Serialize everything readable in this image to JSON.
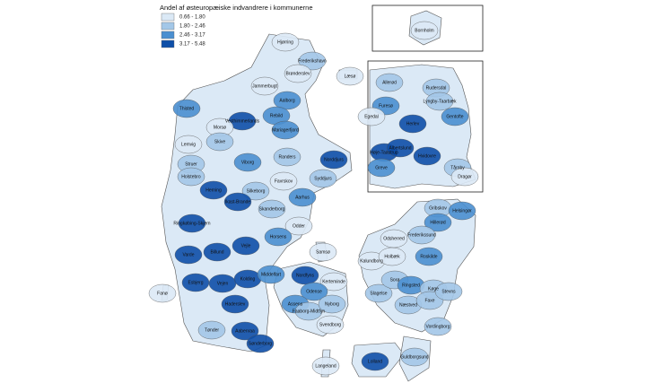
{
  "title": "Andel af østeuropæiske indvandrere i kommunerne",
  "legend": [
    {
      "label": "0.66 - 1.80",
      "color": "#dbe9f6"
    },
    {
      "label": "1.80 - 2.46",
      "color": "#a3c7e8"
    },
    {
      "label": "2.46 - 3.17",
      "color": "#4a8fd0"
    },
    {
      "label": "3.17 - 5.48",
      "color": "#0e4fa8"
    }
  ],
  "municipalities": [
    {
      "name": "Hjørring",
      "color": "#dbe9f6"
    },
    {
      "name": "Frederikshavn",
      "color": "#a3c7e8"
    },
    {
      "name": "Brønderslev",
      "color": "#dbe9f6"
    },
    {
      "name": "Læsø",
      "color": "#dbe9f6"
    },
    {
      "name": "Jammerbugt",
      "color": "#dbe9f6"
    },
    {
      "name": "Aalborg",
      "color": "#4a8fd0"
    },
    {
      "name": "Thisted",
      "color": "#4a8fd0"
    },
    {
      "name": "Vesthimmerlands",
      "color": "#0e4fa8"
    },
    {
      "name": "Rebild",
      "color": "#4a8fd0"
    },
    {
      "name": "Mariagerfjord",
      "color": "#4a8fd0"
    },
    {
      "name": "Morsø",
      "color": "#dbe9f6"
    },
    {
      "name": "Skive",
      "color": "#a3c7e8"
    },
    {
      "name": "Lemvig",
      "color": "#dbe9f6"
    },
    {
      "name": "Struer",
      "color": "#a3c7e8"
    },
    {
      "name": "Viborg",
      "color": "#4a8fd0"
    },
    {
      "name": "Randers",
      "color": "#a3c7e8"
    },
    {
      "name": "Norddjurs",
      "color": "#0e4fa8"
    },
    {
      "name": "Holstebro",
      "color": "#a3c7e8"
    },
    {
      "name": "Syddjurs",
      "color": "#a3c7e8"
    },
    {
      "name": "Favrskov",
      "color": "#dbe9f6"
    },
    {
      "name": "Herning",
      "color": "#0e4fa8"
    },
    {
      "name": "Silkeborg",
      "color": "#a3c7e8"
    },
    {
      "name": "Aarhus",
      "color": "#4a8fd0"
    },
    {
      "name": "Ikast-Brande",
      "color": "#0e4fa8"
    },
    {
      "name": "Ringkøbing-Skjern",
      "color": "#0e4fa8"
    },
    {
      "name": "Skanderborg",
      "color": "#a3c7e8"
    },
    {
      "name": "Odder",
      "color": "#dbe9f6"
    },
    {
      "name": "Horsens",
      "color": "#4a8fd0"
    },
    {
      "name": "Samsø",
      "color": "#dbe9f6"
    },
    {
      "name": "Vejle",
      "color": "#0e4fa8"
    },
    {
      "name": "Billund",
      "color": "#0e4fa8"
    },
    {
      "name": "Varde",
      "color": "#0e4fa8"
    },
    {
      "name": "Fanø",
      "color": "#dbe9f6"
    },
    {
      "name": "Esbjerg",
      "color": "#0e4fa8"
    },
    {
      "name": "Vejen",
      "color": "#0e4fa8"
    },
    {
      "name": "Kolding",
      "color": "#0e4fa8"
    },
    {
      "name": "Middelfart",
      "color": "#4a8fd0"
    },
    {
      "name": "Nordfyns",
      "color": "#0e4fa8"
    },
    {
      "name": "Kerteminde",
      "color": "#dbe9f6"
    },
    {
      "name": "Odense",
      "color": "#4a8fd0"
    },
    {
      "name": "Assens",
      "color": "#4a8fd0"
    },
    {
      "name": "Haderslev",
      "color": "#0e4fa8"
    },
    {
      "name": "Faaborg-Midtfyn",
      "color": "#a3c7e8"
    },
    {
      "name": "Nyborg",
      "color": "#a3c7e8"
    },
    {
      "name": "Svendborg",
      "color": "#dbe9f6"
    },
    {
      "name": "Tønder",
      "color": "#a3c7e8"
    },
    {
      "name": "Aabenraa",
      "color": "#0e4fa8"
    },
    {
      "name": "Sønderborg",
      "color": "#0e4fa8"
    },
    {
      "name": "Langeland",
      "color": "#dbe9f6"
    },
    {
      "name": "Lolland",
      "color": "#0e4fa8"
    },
    {
      "name": "Guldborgsund",
      "color": "#a3c7e8"
    },
    {
      "name": "Vordingborg",
      "color": "#a3c7e8"
    },
    {
      "name": "Næstved",
      "color": "#a3c7e8"
    },
    {
      "name": "Slagelse",
      "color": "#a3c7e8"
    },
    {
      "name": "Sorø",
      "color": "#a3c7e8"
    },
    {
      "name": "Ringsted",
      "color": "#4a8fd0"
    },
    {
      "name": "Kalundborg",
      "color": "#dbe9f6"
    },
    {
      "name": "Holbæk",
      "color": "#dbe9f6"
    },
    {
      "name": "Odsherred",
      "color": "#dbe9f6"
    },
    {
      "name": "Køge",
      "color": "#a3c7e8"
    },
    {
      "name": "Faxe",
      "color": "#a3c7e8"
    },
    {
      "name": "Stevns",
      "color": "#a3c7e8"
    },
    {
      "name": "Roskilde",
      "color": "#4a8fd0"
    },
    {
      "name": "Gribskov",
      "color": "#a3c7e8"
    },
    {
      "name": "Helsingør",
      "color": "#4a8fd0"
    },
    {
      "name": "Hillerød",
      "color": "#4a8fd0"
    },
    {
      "name": "Frederikssund",
      "color": "#a3c7e8"
    },
    {
      "name": "Bornholm",
      "color": "#dbe9f6"
    },
    {
      "name": "Allerød",
      "color": "#a3c7e8"
    },
    {
      "name": "Rudersdal",
      "color": "#a3c7e8"
    },
    {
      "name": "Furesø",
      "color": "#4a8fd0"
    },
    {
      "name": "Egedal",
      "color": "#dbe9f6"
    },
    {
      "name": "Lyngby-Taarbæk",
      "color": "#a3c7e8"
    },
    {
      "name": "Gentofte",
      "color": "#4a8fd0"
    },
    {
      "name": "Herlev",
      "color": "#0e4fa8"
    },
    {
      "name": "Høje-Taastrup",
      "color": "#0e4fa8"
    },
    {
      "name": "Albertslund",
      "color": "#0e4fa8"
    },
    {
      "name": "Hvidovre",
      "color": "#0e4fa8"
    },
    {
      "name": "Tårnby",
      "color": "#a3c7e8"
    },
    {
      "name": "Dragør",
      "color": "#dbe9f6"
    },
    {
      "name": "Greve",
      "color": "#4a8fd0"
    }
  ]
}
